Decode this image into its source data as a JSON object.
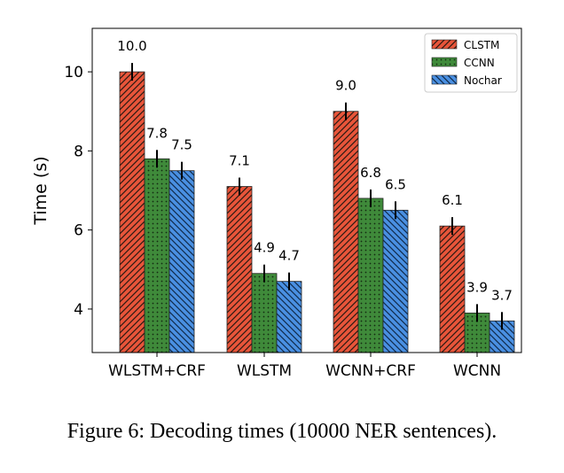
{
  "caption": "Figure 6: Decoding times (10000 NER sentences).",
  "chart_data": {
    "type": "bar",
    "categories": [
      "WLSTM+CRF",
      "WLSTM",
      "WCNN+CRF",
      "WCNN"
    ],
    "series": [
      {
        "name": "CLSTM",
        "values": [
          10.0,
          7.1,
          9.0,
          6.1
        ],
        "color": "#e8553a",
        "hatch": "diagonal-forward"
      },
      {
        "name": "CCNN",
        "values": [
          7.8,
          4.9,
          6.8,
          3.9
        ],
        "color": "#3f8a3a",
        "hatch": "dots"
      },
      {
        "name": "Nochar",
        "values": [
          7.5,
          4.7,
          6.5,
          3.7
        ],
        "color": "#4a90e2",
        "hatch": "diagonal-back"
      }
    ],
    "value_labels": [
      [
        "10.0",
        "7.1",
        "9.0",
        "6.1"
      ],
      [
        "7.8",
        "4.9",
        "6.8",
        "3.9"
      ],
      [
        "7.5",
        "4.7",
        "6.5",
        "3.7"
      ]
    ],
    "ylabel": "Time (s)",
    "xlabel": "",
    "ylim": [
      2.9,
      11.1
    ],
    "yticks": [
      4,
      6,
      8,
      10
    ],
    "error_bars": true,
    "grid": false,
    "legend_position": "top-right"
  }
}
